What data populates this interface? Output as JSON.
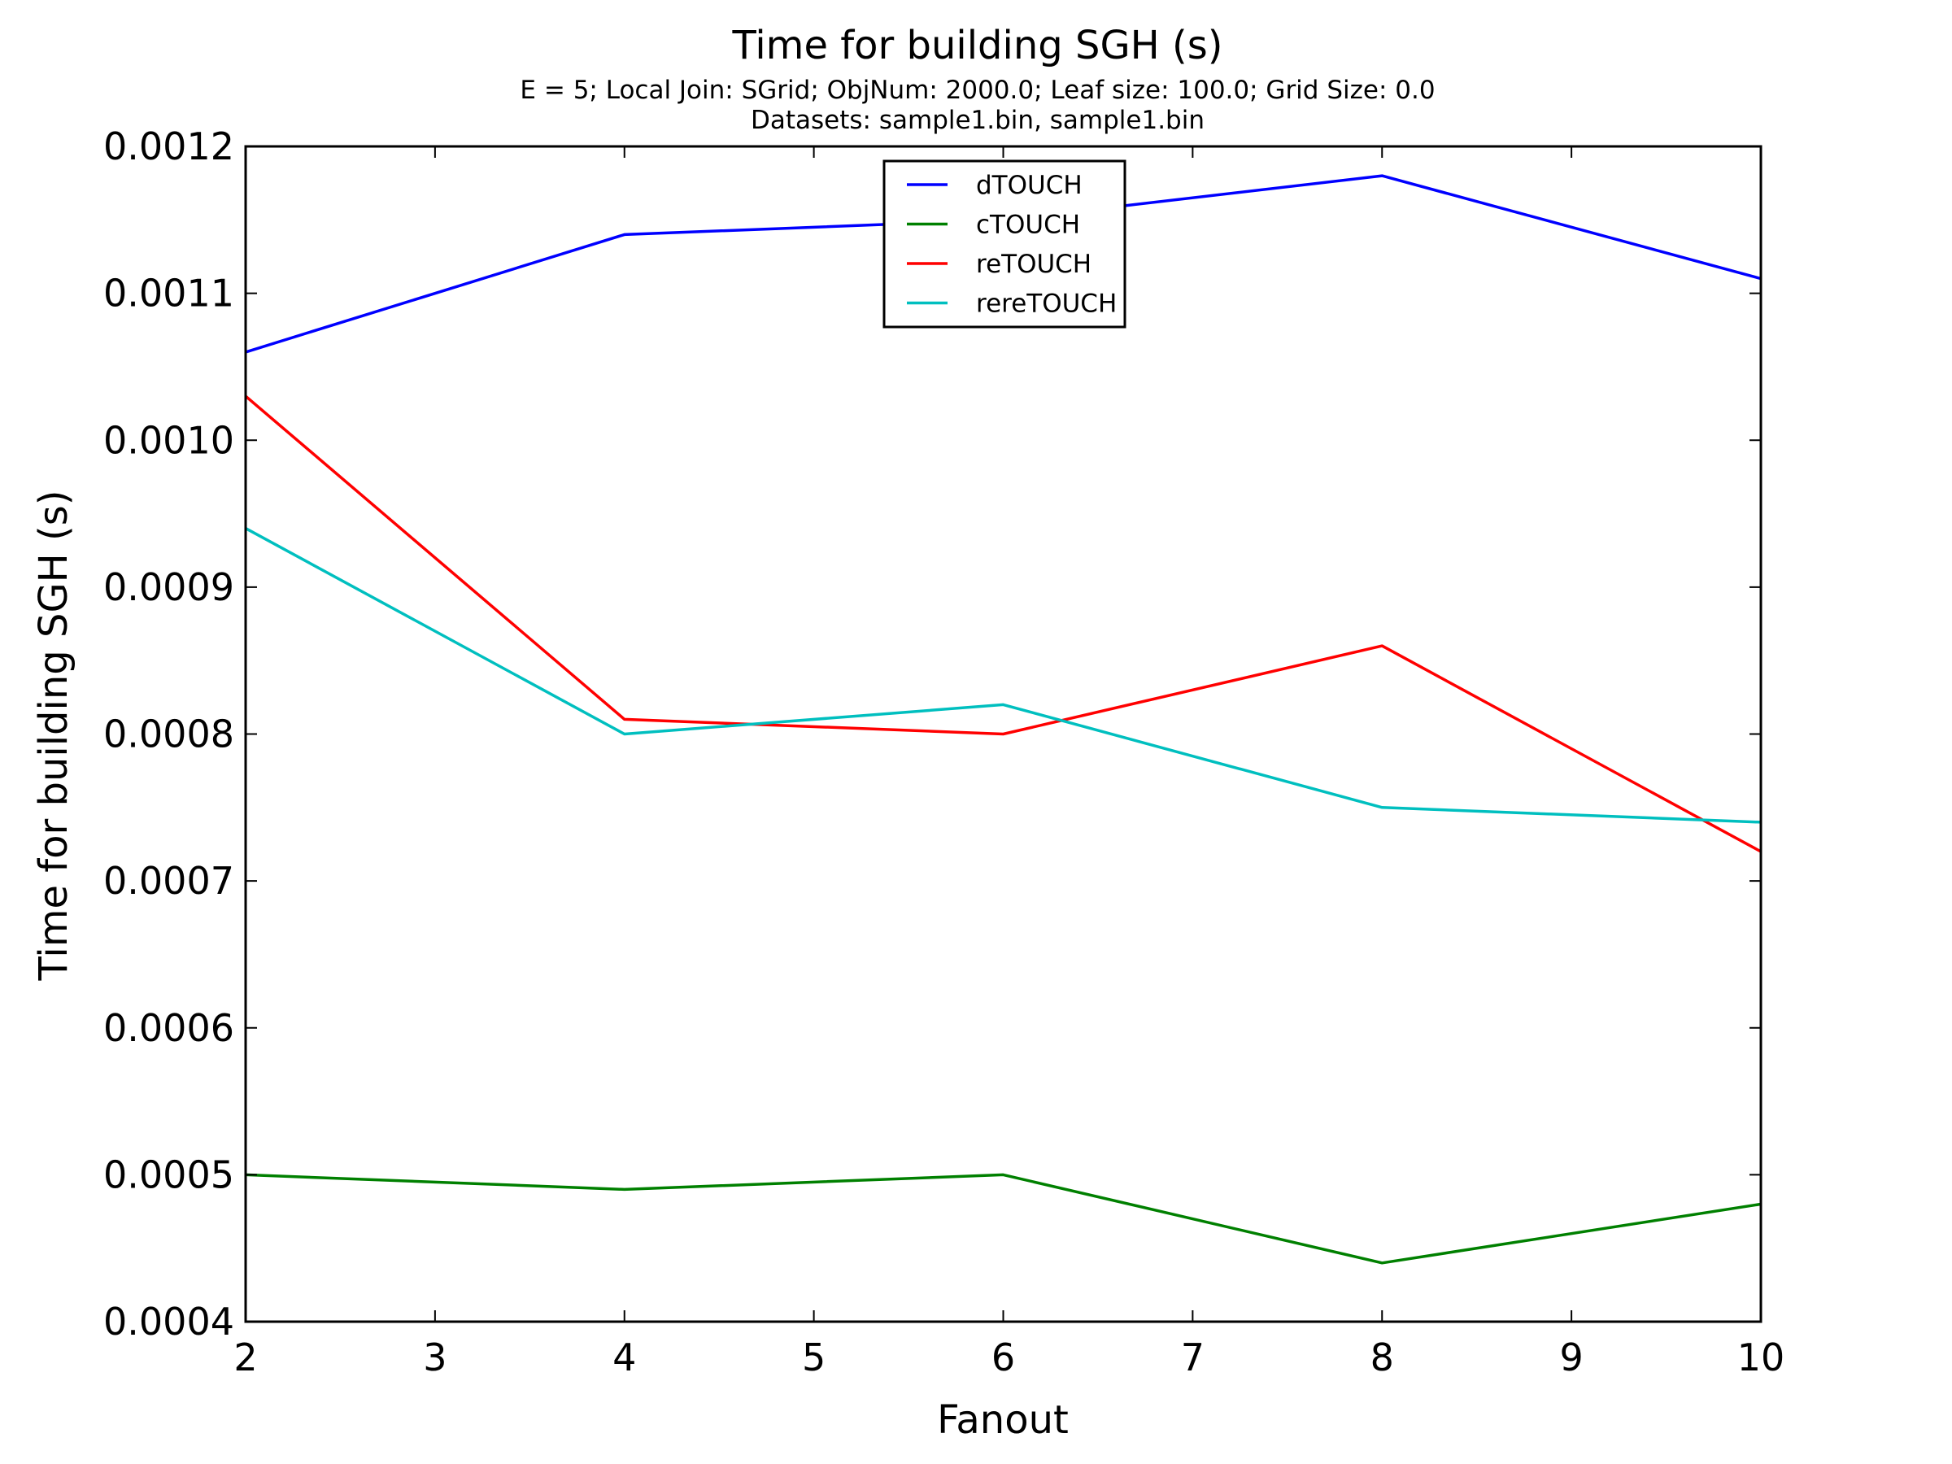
{
  "chart_data": {
    "type": "line",
    "title": "Time for building SGH (s)",
    "subtitle_lines": [
      "E = 5; Local Join: SGrid; ObjNum: 2000.0; Leaf size: 100.0; Grid Size: 0.0",
      "Datasets: sample1.bin, sample1.bin"
    ],
    "xlabel": "Fanout",
    "ylabel": "Time for building SGH (s)",
    "xlim": [
      2,
      10
    ],
    "ylim": [
      0.0004,
      0.0012
    ],
    "x_ticks": [
      2,
      3,
      4,
      5,
      6,
      7,
      8,
      9,
      10
    ],
    "x_tick_labels": [
      "2",
      "3",
      "4",
      "5",
      "6",
      "7",
      "8",
      "9",
      "10"
    ],
    "y_ticks": [
      0.0004,
      0.0005,
      0.0006,
      0.0007,
      0.0008,
      0.0009,
      0.001,
      0.0011,
      0.0012
    ],
    "y_tick_labels": [
      "0.0004",
      "0.0005",
      "0.0006",
      "0.0007",
      "0.0008",
      "0.0009",
      "0.0010",
      "0.0011",
      "0.0012"
    ],
    "grid": false,
    "legend_position": "top-center",
    "x": [
      2,
      4,
      6,
      8,
      10
    ],
    "series": [
      {
        "name": "dTOUCH",
        "color": "#0000ff",
        "values": [
          0.00106,
          0.00114,
          0.00115,
          0.00118,
          0.00111
        ]
      },
      {
        "name": "cTOUCH",
        "color": "#008000",
        "values": [
          0.0005,
          0.00049,
          0.0005,
          0.00044,
          0.00048
        ]
      },
      {
        "name": "reTOUCH",
        "color": "#ff0000",
        "values": [
          0.00103,
          0.00081,
          0.0008,
          0.00086,
          0.00072
        ]
      },
      {
        "name": "rereTOUCH",
        "color": "#00bfbf",
        "values": [
          0.00094,
          0.0008,
          0.00082,
          0.00075,
          0.00074
        ]
      }
    ]
  }
}
